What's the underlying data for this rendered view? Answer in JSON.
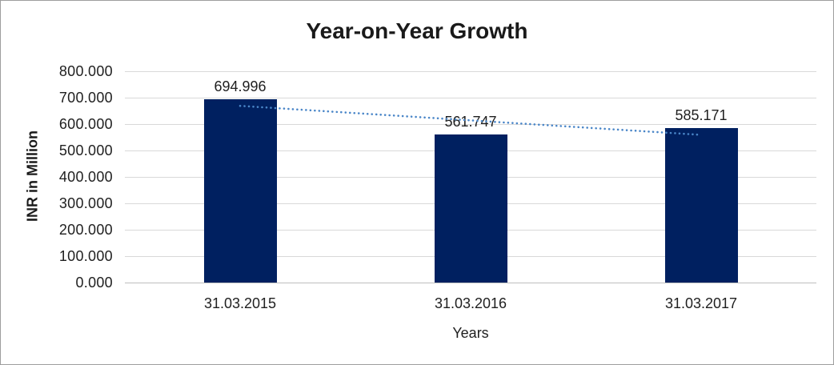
{
  "frame": {
    "border_color": "#9e9e9e",
    "background_color": "#ffffff"
  },
  "chart_data": {
    "type": "bar",
    "title": "Year-on-Year Growth",
    "xlabel": "Years",
    "ylabel": "INR in Million",
    "categories": [
      "31.03.2015",
      "31.03.2016",
      "31.03.2017"
    ],
    "values": [
      694.996,
      561.747,
      585.171
    ],
    "data_labels": [
      "694.996",
      "561.747",
      "585.171"
    ],
    "ylim": [
      0,
      800
    ],
    "ytick_step": 100,
    "ytick_labels": [
      "0.000",
      "100.000",
      "200.000",
      "300.000",
      "400.000",
      "500.000",
      "600.000",
      "700.000",
      "800.000"
    ],
    "grid": true,
    "legend": "none",
    "bar_color": "#002060",
    "gridline_color": "#d9d9d9",
    "axis_line_color": "#bfbfbf",
    "text_color": "#1f1f1f",
    "trendline": {
      "type": "linear",
      "style": "dotted",
      "color": "#4a86c8"
    }
  }
}
